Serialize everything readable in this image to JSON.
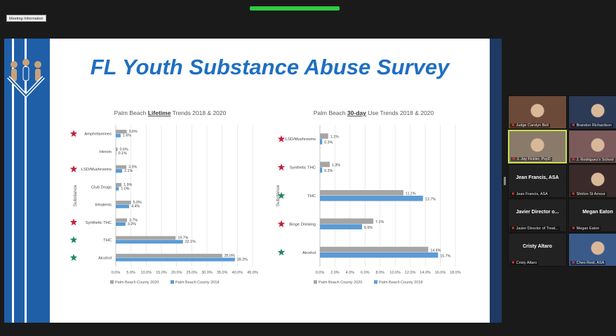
{
  "meeting_info_label": "Meeting Information",
  "slide": {
    "title": "FL Youth Substance Abuse Survey"
  },
  "colors": {
    "series_2020": "#a5a5a5",
    "series_2018": "#5b9bd5",
    "star_red": "#c0223b",
    "star_green": "#1e8a5a",
    "title_blue": "#1f6fc1"
  },
  "chart_data": [
    {
      "type": "bar",
      "orientation": "horizontal",
      "title_parts": [
        "Palm Beach ",
        "Lifetime",
        " Trends 2018 & 2020"
      ],
      "ylabel": "Substance",
      "categories": [
        "Amphetamines",
        "Heroin",
        "LSD/Mushrooms",
        "Club Drugs",
        "Inhalents",
        "Synthetic THC",
        "THC",
        "Alcohol"
      ],
      "markers": [
        "red",
        "none",
        "red",
        "none",
        "none",
        "red",
        "green",
        "green"
      ],
      "series": [
        {
          "name": "Palm Beach County 2020",
          "values": [
            3.6,
            0.6,
            3.5,
            1.9,
            5.0,
            3.7,
            19.7,
            35.0
          ],
          "labels": [
            "3.6%",
            "0.6%",
            "3.5%",
            "1.9%",
            "5.0%",
            "3.7%",
            "19.7%",
            "35.0%"
          ]
        },
        {
          "name": "Palm Beach County 2018",
          "values": [
            1.6,
            0.1,
            2.1,
            1.0,
            4.4,
            3.2,
            22.1,
            39.2
          ],
          "labels": [
            "1.6%",
            "0.1%",
            "2.1%",
            "1.0%",
            "4.4%",
            "3.2%",
            "22.1%",
            "39.2%"
          ]
        }
      ],
      "xlim": [
        0,
        45
      ],
      "xticks": [
        "0.0%",
        "5.0%",
        "10.0%",
        "15.0%",
        "20.0%",
        "25.0%",
        "30.0%",
        "35.0%",
        "40.0%",
        "45.0%"
      ],
      "grid": true,
      "legend": "bottom"
    },
    {
      "type": "bar",
      "orientation": "horizontal",
      "title_parts": [
        "Palm Beach ",
        "30-day",
        " Use Trends 2018 & 2020"
      ],
      "ylabel": "Substance",
      "categories": [
        "LSD/Mushrooms",
        "Synthetic THC",
        "THC",
        "Binge Drinking",
        "Alcohol"
      ],
      "markers": [
        "red",
        "red",
        "green",
        "red",
        "green"
      ],
      "series": [
        {
          "name": "Palm Beach County 2020",
          "values": [
            1.1,
            1.3,
            11.1,
            7.1,
            14.4
          ],
          "labels": [
            "1.1%",
            "1.3%",
            "11.1%",
            "7.1%",
            "14.4%"
          ]
        },
        {
          "name": "Palm Beach County 2018",
          "values": [
            0.3,
            0.3,
            13.7,
            5.6,
            15.7
          ],
          "labels": [
            "0.3%",
            "0.3%",
            "13.7%",
            "5.6%",
            "15.7%"
          ]
        }
      ],
      "xlim": [
        0,
        18
      ],
      "xticks": [
        "0.0%",
        "2.0%",
        "4.0%",
        "6.0%",
        "8.0%",
        "10.0%",
        "12.0%",
        "14.0%",
        "16.0%",
        "18.0%"
      ],
      "grid": true,
      "legend": "bottom"
    }
  ],
  "participants": [
    {
      "name": "Judge Carolyn Bell",
      "video": true,
      "tone": "#6b4a3a"
    },
    {
      "name": "Brandon Richardson",
      "video": true,
      "tone": "#2d3a55"
    },
    {
      "name": "J. Jay Fickler, PsyD",
      "video": true,
      "tone": "#8a7a6a",
      "active": true
    },
    {
      "name": "J. Rodriguez's School",
      "video": true,
      "tone": "#7a5a5a"
    },
    {
      "name": "Jean Francis, ASA",
      "display": "Jean Francis, ASA",
      "video": false
    },
    {
      "name": "Shirlon St Amour",
      "video": true,
      "tone": "#3a2a2a"
    },
    {
      "name": "Javier Director of Treat...",
      "display": "Javier Director o...",
      "video": false
    },
    {
      "name": "Megan Eaton",
      "display": "Megan Eaton",
      "video": false
    },
    {
      "name": "Cristy Altaro",
      "display": "Cristy Altaro",
      "video": false
    },
    {
      "name": "Cheo Reid, ASA",
      "video": true,
      "tone": "#3a5a8a"
    }
  ]
}
